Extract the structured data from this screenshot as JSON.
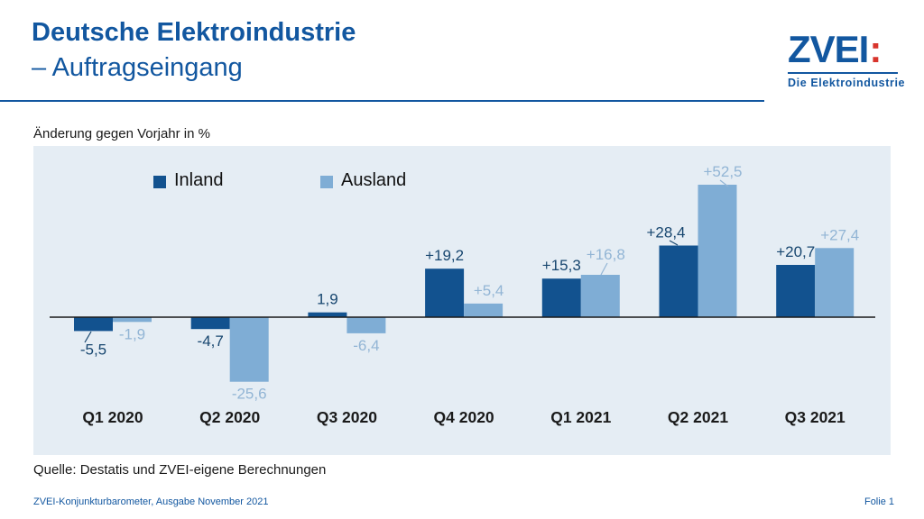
{
  "header": {
    "title_line1": "Deutsche Elektroindustrie",
    "title_line2": "– Auftragseingang"
  },
  "logo": {
    "wordmark": "ZVEI",
    "colon": ":",
    "tagline": "Die Elektroindustrie"
  },
  "theme": {
    "primary_blue": "#1257a0",
    "logo_red": "#d8342c",
    "panel_bg": "#e5edf4",
    "axis_color": "#1a1a1a",
    "category_text": "#1a1a1a"
  },
  "chart": {
    "note": "Änderung gegen Vorjahr in %"
  },
  "chart_data": {
    "type": "bar",
    "title": "",
    "subtitle": "Änderung gegen Vorjahr in %",
    "categories": [
      "Q1 2020",
      "Q2 2020",
      "Q3 2020",
      "Q4 2020",
      "Q1 2021",
      "Q2 2021",
      "Q3 2021"
    ],
    "series": [
      {
        "name": "Inland",
        "color": "#12528f",
        "label_color": "#17466f",
        "values": [
          -5.5,
          -4.7,
          1.9,
          19.2,
          15.3,
          28.4,
          20.7
        ],
        "labels": [
          "-5,5",
          "-4,7",
          "1,9",
          "+19,2",
          "+15,3",
          "+28,4",
          "+20,7"
        ]
      },
      {
        "name": "Ausland",
        "color": "#7fadd5",
        "label_color": "#92b5d5",
        "values": [
          -1.9,
          -25.6,
          -6.4,
          5.4,
          16.8,
          52.5,
          27.4
        ],
        "labels": [
          "-1,9",
          "-25,6",
          "-6,4",
          "+5,4",
          "+16,8",
          "+52,5",
          "+27,4"
        ]
      }
    ],
    "ylim": [
      -30,
      60
    ],
    "grid": false,
    "zero_axis": true,
    "legend_position": "top-inside"
  },
  "footer": {
    "source": "Quelle: Destatis und ZVEI-eigene Berechnungen",
    "left": "ZVEI-Konjunkturbarometer, Ausgabe November 2021",
    "right": "Folie 1"
  }
}
